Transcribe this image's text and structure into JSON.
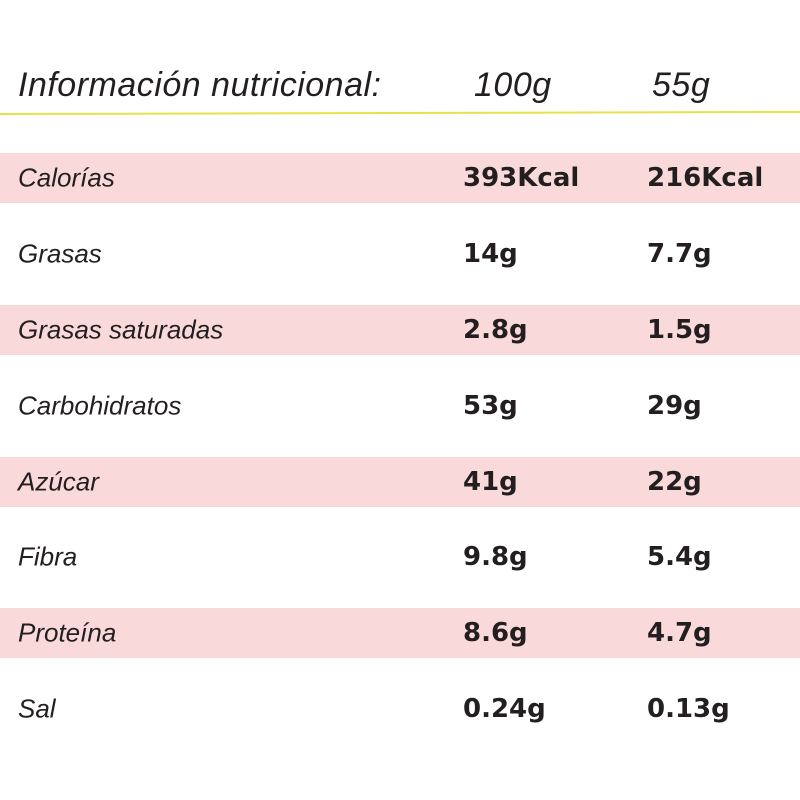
{
  "header": {
    "title": "Información nutricional:",
    "col1": "100g",
    "col2": "55g"
  },
  "colors": {
    "pink_row": "#f9d9d9",
    "rule": "#e6e34a"
  },
  "rows": [
    {
      "label": "Calorías",
      "v100": "393Kcal",
      "v55": "216Kcal"
    },
    {
      "label": "Grasas",
      "v100": "14g",
      "v55": "7.7g"
    },
    {
      "label": "Grasas saturadas",
      "v100": "2.8g",
      "v55": "1.5g"
    },
    {
      "label": "Carbohidratos",
      "v100": "53g",
      "v55": "29g"
    },
    {
      "label": "Azúcar",
      "v100": "41g",
      "v55": "22g"
    },
    {
      "label": "Fibra",
      "v100": "9.8g",
      "v55": "5.4g"
    },
    {
      "label": "Proteína",
      "v100": "8.6g",
      "v55": "4.7g"
    },
    {
      "label": "Sal",
      "v100": "0.24g",
      "v55": "0.13g"
    }
  ]
}
